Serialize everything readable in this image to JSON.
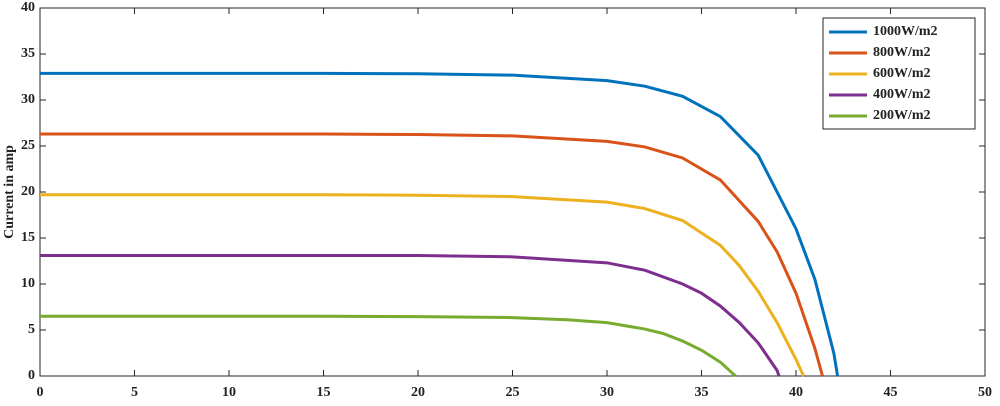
{
  "chart_data": {
    "type": "line",
    "ylabel": "Current in amp",
    "xlim": [
      0,
      50
    ],
    "xticks": [
      0,
      5,
      10,
      15,
      20,
      25,
      30,
      35,
      40,
      45,
      50
    ],
    "ylim": [
      0,
      40
    ],
    "yticks": [
      0,
      5,
      10,
      15,
      20,
      25,
      30,
      35,
      40
    ],
    "grid": false,
    "legend": "upper right",
    "series": [
      {
        "name": "1000W/m2",
        "color": "#0072BD",
        "x": [
          0,
          5,
          10,
          15,
          20,
          25,
          30,
          32,
          34,
          36,
          38,
          40,
          41,
          42,
          42.2
        ],
        "values": [
          32.9,
          32.9,
          32.9,
          32.9,
          32.85,
          32.7,
          32.1,
          31.5,
          30.4,
          28.2,
          24,
          16,
          10.5,
          2.5,
          0
        ]
      },
      {
        "name": "800W/m2",
        "color": "#D95319",
        "x": [
          0,
          5,
          10,
          15,
          20,
          25,
          30,
          32,
          34,
          36,
          38,
          39,
          40,
          41,
          41.4
        ],
        "values": [
          26.3,
          26.3,
          26.3,
          26.3,
          26.25,
          26.1,
          25.5,
          24.9,
          23.7,
          21.3,
          16.8,
          13.5,
          9,
          3,
          0
        ]
      },
      {
        "name": "600W/m2",
        "color": "#EDB120",
        "x": [
          0,
          5,
          10,
          15,
          20,
          25,
          30,
          32,
          34,
          36,
          37,
          38,
          39,
          40,
          40.4
        ],
        "values": [
          19.7,
          19.7,
          19.7,
          19.7,
          19.65,
          19.5,
          18.9,
          18.2,
          16.9,
          14.2,
          12,
          9.2,
          5.8,
          1.8,
          0
        ]
      },
      {
        "name": "400W/m2",
        "color": "#7E2F8E",
        "x": [
          0,
          5,
          10,
          15,
          20,
          25,
          30,
          32,
          34,
          35,
          36,
          37,
          38,
          39,
          39.1
        ],
        "values": [
          13.1,
          13.1,
          13.1,
          13.1,
          13.1,
          12.95,
          12.3,
          11.5,
          10,
          9,
          7.6,
          5.8,
          3.6,
          0.6,
          0
        ]
      },
      {
        "name": "200W/m2",
        "color": "#77AC30",
        "x": [
          0,
          5,
          10,
          15,
          20,
          25,
          28,
          30,
          32,
          33,
          34,
          35,
          36,
          36.8
        ],
        "values": [
          6.5,
          6.5,
          6.5,
          6.5,
          6.45,
          6.35,
          6.1,
          5.8,
          5.1,
          4.6,
          3.8,
          2.8,
          1.5,
          0
        ]
      }
    ]
  }
}
